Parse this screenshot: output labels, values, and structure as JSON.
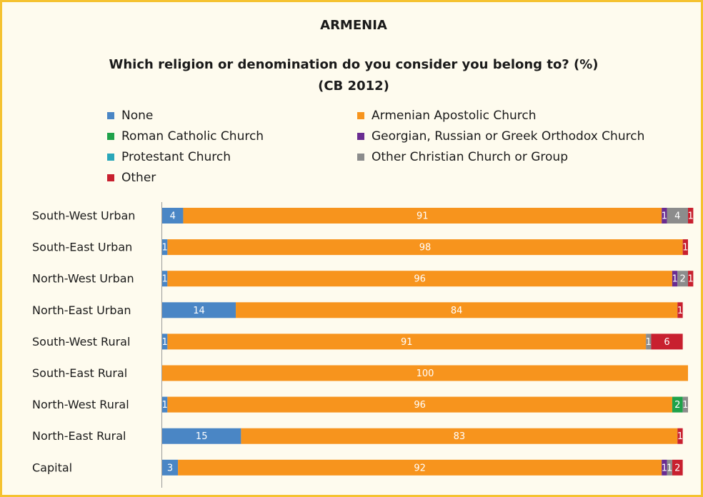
{
  "header": {
    "country": "ARMENIA",
    "question": "Which religion or denomination do you consider you belong to? (%)",
    "source": "(CB 2012)"
  },
  "colors": {
    "frame_border": "#f5c230",
    "background": "#fefbee"
  },
  "chart_data": {
    "type": "bar",
    "orientation": "horizontal",
    "stacked": true,
    "xlim": [
      0,
      100
    ],
    "grid": false,
    "legend_position": "top",
    "categories": [
      "South-West Urban",
      "South-East Urban",
      "North-West Urban",
      "North-East Urban",
      "South-West Rural",
      "South-East Rural",
      "North-West Rural",
      "North-East Rural",
      "Capital"
    ],
    "series": [
      {
        "name": "None",
        "color": "#4a86c5",
        "values": [
          4,
          1,
          1,
          14,
          1,
          0,
          1,
          15,
          3
        ]
      },
      {
        "name": "Armenian Apostolic Church",
        "color": "#f7941d",
        "values": [
          91,
          98,
          96,
          84,
          91,
          100,
          96,
          83,
          92
        ]
      },
      {
        "name": "Roman Catholic Church",
        "color": "#1fa24a",
        "values": [
          0,
          0,
          0,
          0,
          0,
          0,
          2,
          0,
          0
        ]
      },
      {
        "name": "Georgian, Russian or Greek Orthodox Church",
        "color": "#6a2c91",
        "values": [
          1,
          0,
          1,
          0,
          0,
          0,
          0,
          0,
          1
        ]
      },
      {
        "name": "Protestant Church",
        "color": "#2aa7b9",
        "values": [
          0,
          0,
          0,
          0,
          0,
          0,
          0,
          0,
          0
        ]
      },
      {
        "name": "Other Christian Church or Group",
        "color": "#8c8c8c",
        "values": [
          4,
          0,
          2,
          0,
          1,
          0,
          1,
          0,
          1
        ]
      },
      {
        "name": "Other",
        "color": "#c8202f",
        "values": [
          1,
          1,
          1,
          1,
          6,
          0,
          0,
          1,
          2
        ]
      }
    ]
  }
}
